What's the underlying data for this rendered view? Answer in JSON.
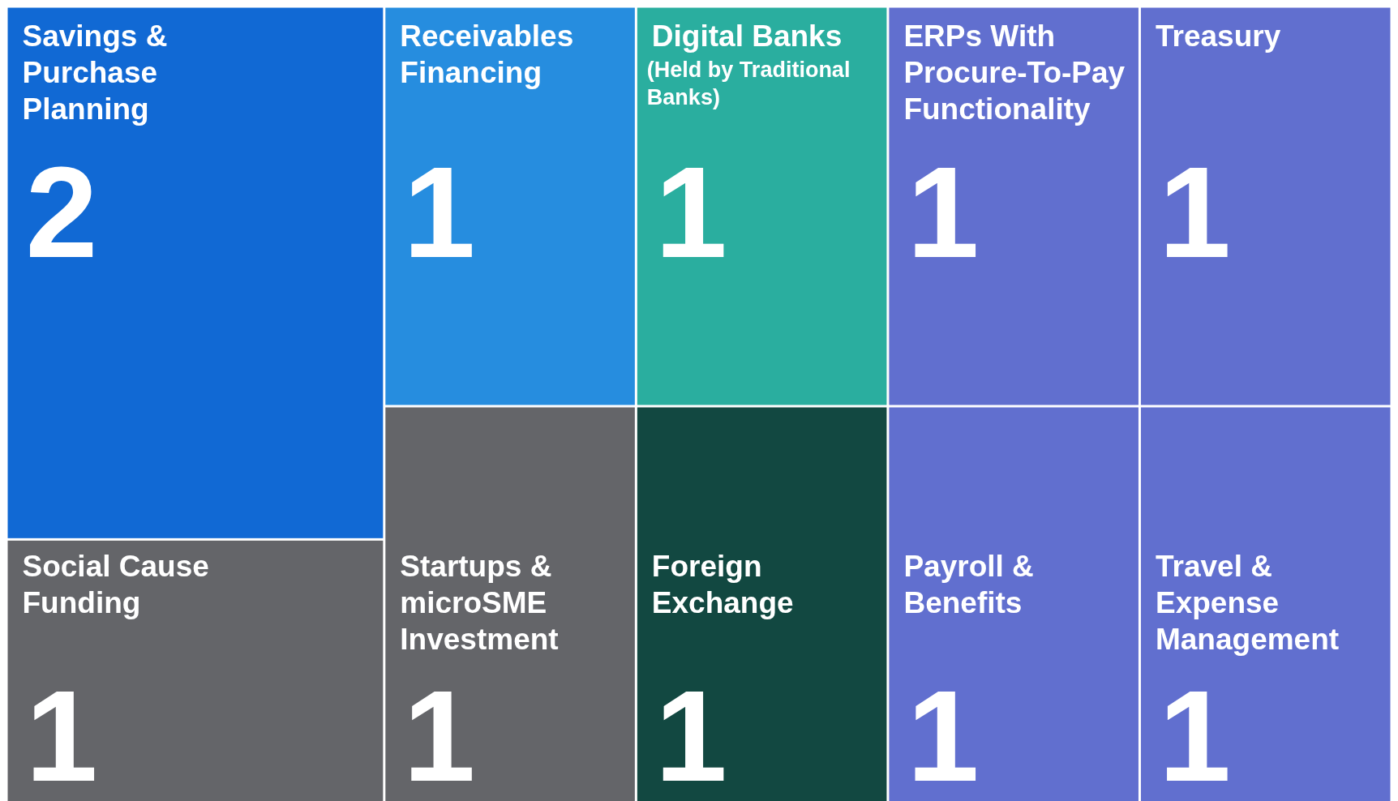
{
  "chart_data": {
    "type": "other",
    "categories": [
      "Savings & Purchase Planning",
      "Social Cause Funding",
      "Receivables Financing",
      "Startups & microSME Investment",
      "Digital Banks (Held by Traditional Banks)",
      "Foreign Exchange",
      "ERPs With Procure-To-Pay Functionality",
      "Payroll & Benefits",
      "Treasury",
      "Travel & Expense Management"
    ],
    "values": [
      2,
      1,
      1,
      1,
      1,
      1,
      1,
      1,
      1,
      1
    ],
    "data_labels": true,
    "colors": [
      "#1169d4",
      "#646569",
      "#268ddf",
      "#646569",
      "#2aae9f",
      "#124841",
      "#616fcf",
      "#616fcf",
      "#616fcf",
      "#616fcf"
    ]
  }
}
